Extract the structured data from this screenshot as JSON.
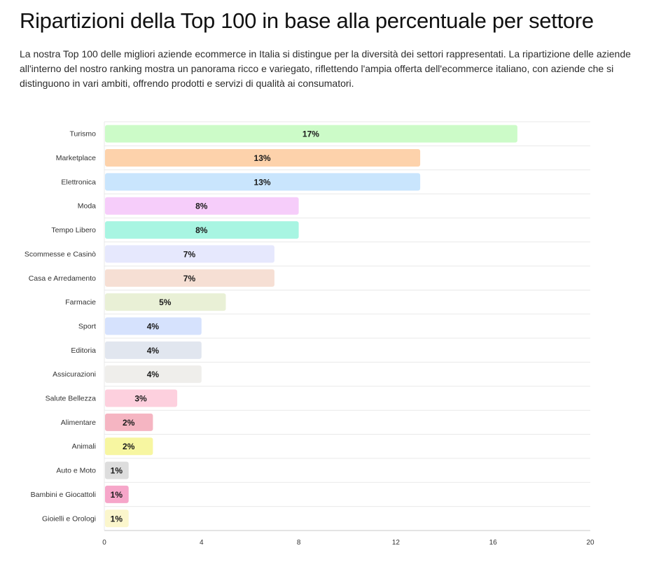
{
  "page": {
    "title": "Ripartizioni della Top 100 in base alla percentuale per settore",
    "intro": "La nostra Top 100 delle migliori aziende ecommerce in Italia si distingue per la diversità dei settori rappresentati. La ripartizione delle aziende all'interno del nostro ranking mostra un panorama ricco e variegato, riflettendo l'ampia offerta dell'ecommerce italiano, con aziende che si distinguono in vari ambiti, offrendo prodotti e servizi di qualità ai consumatori."
  },
  "chart_data": {
    "type": "bar",
    "orientation": "horizontal",
    "categories": [
      "Turismo",
      "Marketplace",
      "Elettronica",
      "Moda",
      "Tempo Libero",
      "Scommesse e Casinò",
      "Casa e Arredamento",
      "Farmacie",
      "Sport",
      "Editoria",
      "Assicurazioni",
      "Salute Bellezza",
      "Alimentare",
      "Animali",
      "Auto e Moto",
      "Bambini e Giocattoli",
      "Gioielli e Orologi"
    ],
    "values": [
      17,
      13,
      13,
      8,
      8,
      7,
      7,
      5,
      4,
      4,
      4,
      3,
      2,
      2,
      1,
      1,
      1
    ],
    "data_labels": [
      "17%",
      "13%",
      "13%",
      "8%",
      "8%",
      "7%",
      "7%",
      "5%",
      "4%",
      "4%",
      "4%",
      "3%",
      "2%",
      "2%",
      "1%",
      "1%",
      "1%"
    ],
    "colors": [
      "#ccfbc8",
      "#fdd2ab",
      "#c9e5fd",
      "#f6cdfa",
      "#a8f5e2",
      "#e6e8fd",
      "#f6dfd4",
      "#e9f0d6",
      "#d6e2fd",
      "#e1e6ef",
      "#efeeeb",
      "#fdd0de",
      "#f5b5c2",
      "#f7f6a1",
      "#dddddd",
      "#f6a6c9",
      "#fbf6cc"
    ],
    "xlim": [
      0,
      20
    ],
    "xticks": [
      0,
      4,
      8,
      12,
      16,
      20
    ],
    "xlabel": "",
    "ylabel": "",
    "grid": "horizontal row separators",
    "legend": "none"
  }
}
